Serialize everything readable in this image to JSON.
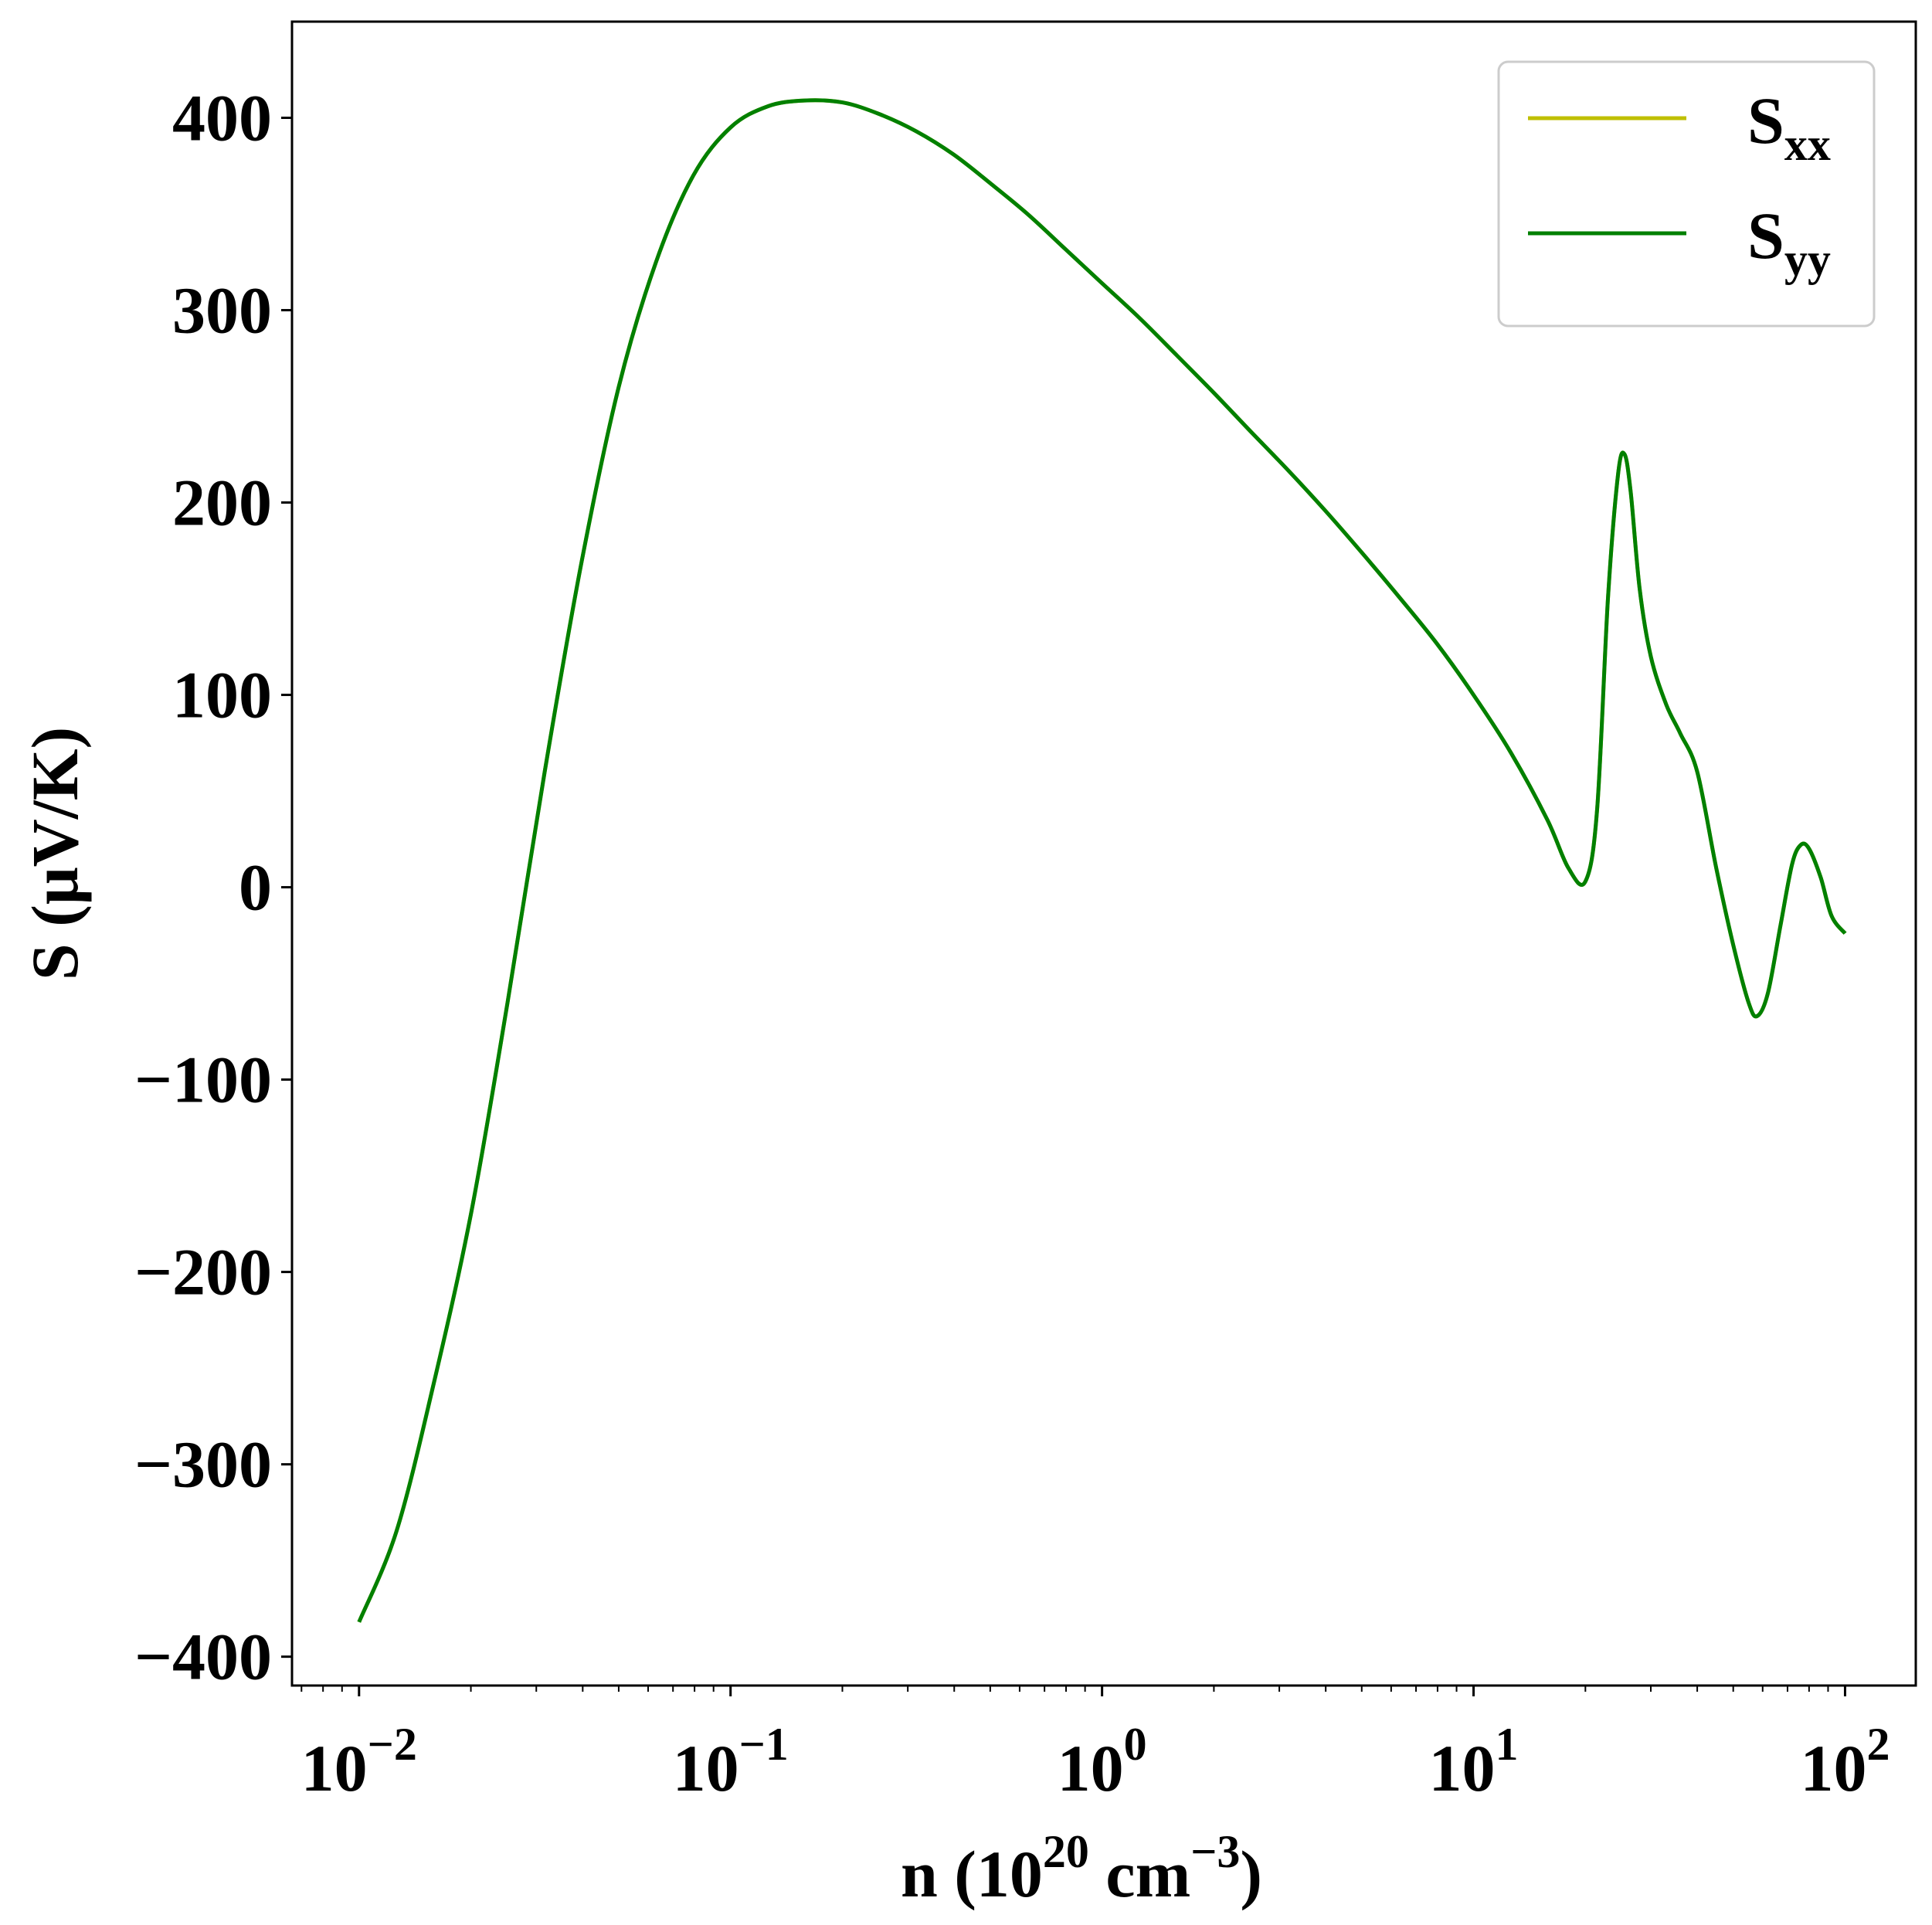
{
  "chart_data": {
    "type": "line",
    "title": "",
    "xlabel": {
      "prefix": "n (10",
      "sup1": "20",
      "mid": " cm",
      "sup2": "−3",
      "suffix": ")"
    },
    "ylabel": "S (μV/K)",
    "x_scale": "log",
    "xlim": [
      0.0066,
      155
    ],
    "ylim": [
      -415,
      450
    ],
    "x_ticks": [
      {
        "value": 0.01,
        "base": "10",
        "exp": "−2"
      },
      {
        "value": 0.1,
        "base": "10",
        "exp": "−1"
      },
      {
        "value": 1,
        "base": "10",
        "exp": "0"
      },
      {
        "value": 10,
        "base": "10",
        "exp": "1"
      },
      {
        "value": 100,
        "base": "10",
        "exp": "2"
      }
    ],
    "y_ticks": [
      {
        "value": 400,
        "label": "400"
      },
      {
        "value": 300,
        "label": "300"
      },
      {
        "value": 200,
        "label": "200"
      },
      {
        "value": 100,
        "label": "100"
      },
      {
        "value": 0,
        "label": "0"
      },
      {
        "value": -100,
        "label": "−100"
      },
      {
        "value": -200,
        "label": "−200"
      },
      {
        "value": -300,
        "label": "−300"
      },
      {
        "value": -400,
        "label": "−400"
      }
    ],
    "grid": false,
    "legend": {
      "placement": "top-right",
      "entries": [
        {
          "main": "S",
          "sub": "xx",
          "color": "#bfbf00"
        },
        {
          "main": "S",
          "sub": "yy",
          "color": "#008000"
        }
      ]
    },
    "series": [
      {
        "name": "S_xx",
        "color": "#bfbf00",
        "x": [
          0.01,
          0.0126,
          0.0158,
          0.02,
          0.0251,
          0.0316,
          0.0398,
          0.05,
          0.063,
          0.0794,
          0.1,
          0.126,
          0.158,
          0.2,
          0.251,
          0.316,
          0.398,
          0.5,
          0.63,
          0.794,
          1,
          1.26,
          1.58,
          2,
          2.51,
          3.16,
          3.98,
          5,
          6.3,
          7.94,
          10,
          12.6,
          15.8,
          18,
          20,
          21.5,
          23,
          24.5,
          25.5,
          26.5,
          28,
          30,
          33,
          36,
          40,
          45,
          50,
          55,
          58,
          62,
          67,
          72,
          76,
          80,
          86,
          92,
          100
        ],
        "y": [
          -382,
          -335,
          -260,
          -170,
          -60,
          60,
          170,
          260,
          325,
          370,
          395,
          406,
          409,
          408,
          402,
          393,
          381,
          366,
          350,
          332,
          314,
          296,
          277,
          257,
          237,
          217,
          196,
          174,
          151,
          127,
          100,
          70,
          35,
          10,
          3,
          40,
          150,
          215,
          225,
          205,
          155,
          120,
          95,
          80,
          60,
          10,
          -30,
          -60,
          -67,
          -55,
          -20,
          12,
          22,
          20,
          5,
          -15,
          -24
        ]
      },
      {
        "name": "S_yy",
        "color": "#008000",
        "x": [
          0.01,
          0.0126,
          0.0158,
          0.02,
          0.0251,
          0.0316,
          0.0398,
          0.05,
          0.063,
          0.0794,
          0.1,
          0.126,
          0.158,
          0.2,
          0.251,
          0.316,
          0.398,
          0.5,
          0.63,
          0.794,
          1,
          1.26,
          1.58,
          2,
          2.51,
          3.16,
          3.98,
          5,
          6.3,
          7.94,
          10,
          12.6,
          15.8,
          18,
          20,
          21.5,
          23,
          24.5,
          25.5,
          26.5,
          28,
          30,
          33,
          36,
          40,
          45,
          50,
          55,
          58,
          62,
          67,
          72,
          76,
          80,
          86,
          92,
          100
        ],
        "y": [
          -382,
          -335,
          -260,
          -170,
          -60,
          60,
          170,
          260,
          325,
          370,
          395,
          406,
          409,
          408,
          402,
          393,
          381,
          366,
          350,
          332,
          314,
          296,
          277,
          257,
          237,
          217,
          196,
          174,
          151,
          127,
          100,
          70,
          35,
          10,
          3,
          40,
          150,
          215,
          225,
          205,
          155,
          120,
          95,
          80,
          60,
          10,
          -30,
          -60,
          -67,
          -55,
          -20,
          12,
          22,
          20,
          5,
          -15,
          -24
        ]
      }
    ]
  }
}
